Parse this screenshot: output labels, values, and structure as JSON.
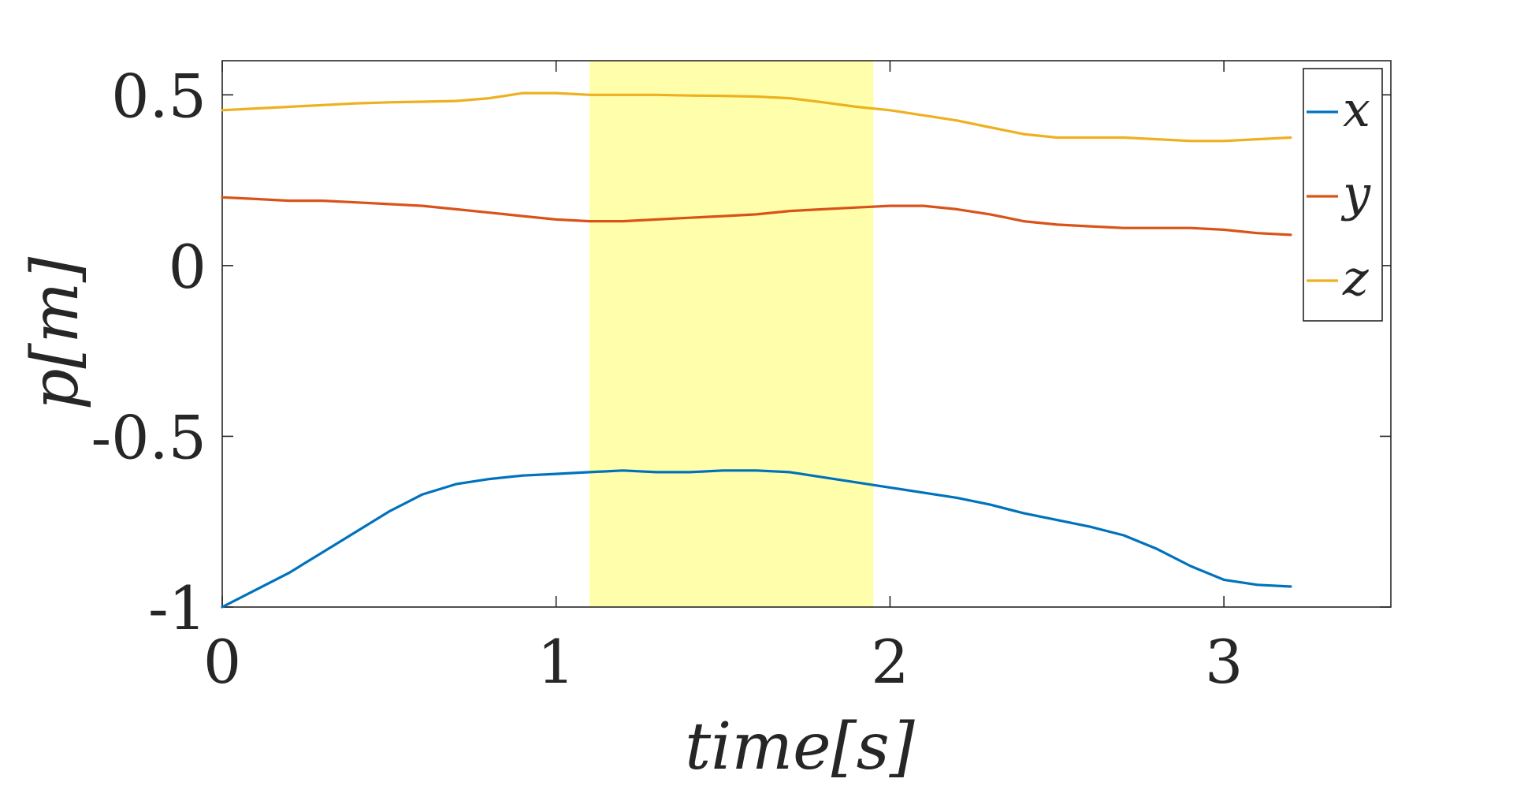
{
  "chart_data": {
    "type": "line",
    "title": "",
    "xlabel": "time[s]",
    "ylabel": "p[m]",
    "xlim": [
      0,
      3.5
    ],
    "ylim": [
      -1,
      0.6
    ],
    "xticks": [
      0,
      1,
      2,
      3
    ],
    "xtick_labels": [
      "0",
      "1",
      "2",
      "3"
    ],
    "yticks": [
      -1,
      -0.5,
      0,
      0.5
    ],
    "ytick_labels": [
      "-1",
      "-0.5",
      "0",
      "0.5"
    ],
    "grid": false,
    "legend_position": "top-right",
    "highlight_region": {
      "x": [
        1.1,
        1.95
      ],
      "color": "#ffff66"
    },
    "series": [
      {
        "name": "x",
        "color": "#0072BD",
        "x": [
          0,
          0.1,
          0.2,
          0.3,
          0.4,
          0.5,
          0.6,
          0.7,
          0.8,
          0.9,
          1.0,
          1.1,
          1.2,
          1.3,
          1.4,
          1.5,
          1.6,
          1.7,
          1.8,
          1.9,
          2.0,
          2.1,
          2.2,
          2.3,
          2.4,
          2.5,
          2.6,
          2.7,
          2.8,
          2.9,
          3.0,
          3.1,
          3.2
        ],
        "y": [
          -1.0,
          -0.95,
          -0.9,
          -0.84,
          -0.78,
          -0.72,
          -0.67,
          -0.64,
          -0.625,
          -0.615,
          -0.61,
          -0.605,
          -0.6,
          -0.605,
          -0.605,
          -0.6,
          -0.6,
          -0.605,
          -0.62,
          -0.635,
          -0.65,
          -0.665,
          -0.68,
          -0.7,
          -0.725,
          -0.745,
          -0.765,
          -0.79,
          -0.83,
          -0.88,
          -0.92,
          -0.935,
          -0.94
        ]
      },
      {
        "name": "y",
        "color": "#D95319",
        "x": [
          0,
          0.1,
          0.2,
          0.3,
          0.4,
          0.5,
          0.6,
          0.7,
          0.8,
          0.9,
          1.0,
          1.1,
          1.2,
          1.3,
          1.4,
          1.5,
          1.6,
          1.7,
          1.8,
          1.9,
          2.0,
          2.1,
          2.2,
          2.3,
          2.4,
          2.5,
          2.6,
          2.7,
          2.8,
          2.9,
          3.0,
          3.1,
          3.2
        ],
        "y": [
          0.2,
          0.195,
          0.19,
          0.19,
          0.185,
          0.18,
          0.175,
          0.165,
          0.155,
          0.145,
          0.135,
          0.13,
          0.13,
          0.135,
          0.14,
          0.145,
          0.15,
          0.16,
          0.165,
          0.17,
          0.175,
          0.175,
          0.165,
          0.15,
          0.13,
          0.12,
          0.115,
          0.11,
          0.11,
          0.11,
          0.105,
          0.095,
          0.09
        ]
      },
      {
        "name": "z",
        "color": "#EDB120",
        "x": [
          0,
          0.1,
          0.2,
          0.3,
          0.4,
          0.5,
          0.6,
          0.7,
          0.8,
          0.9,
          1.0,
          1.1,
          1.2,
          1.3,
          1.4,
          1.5,
          1.6,
          1.7,
          1.8,
          1.9,
          2.0,
          2.1,
          2.2,
          2.3,
          2.4,
          2.5,
          2.6,
          2.7,
          2.8,
          2.9,
          3.0,
          3.1,
          3.2
        ],
        "y": [
          0.455,
          0.46,
          0.465,
          0.47,
          0.475,
          0.478,
          0.48,
          0.482,
          0.49,
          0.505,
          0.505,
          0.5,
          0.5,
          0.5,
          0.498,
          0.497,
          0.495,
          0.49,
          0.478,
          0.465,
          0.455,
          0.44,
          0.425,
          0.405,
          0.385,
          0.375,
          0.375,
          0.375,
          0.37,
          0.365,
          0.365,
          0.37,
          0.375
        ]
      }
    ]
  }
}
